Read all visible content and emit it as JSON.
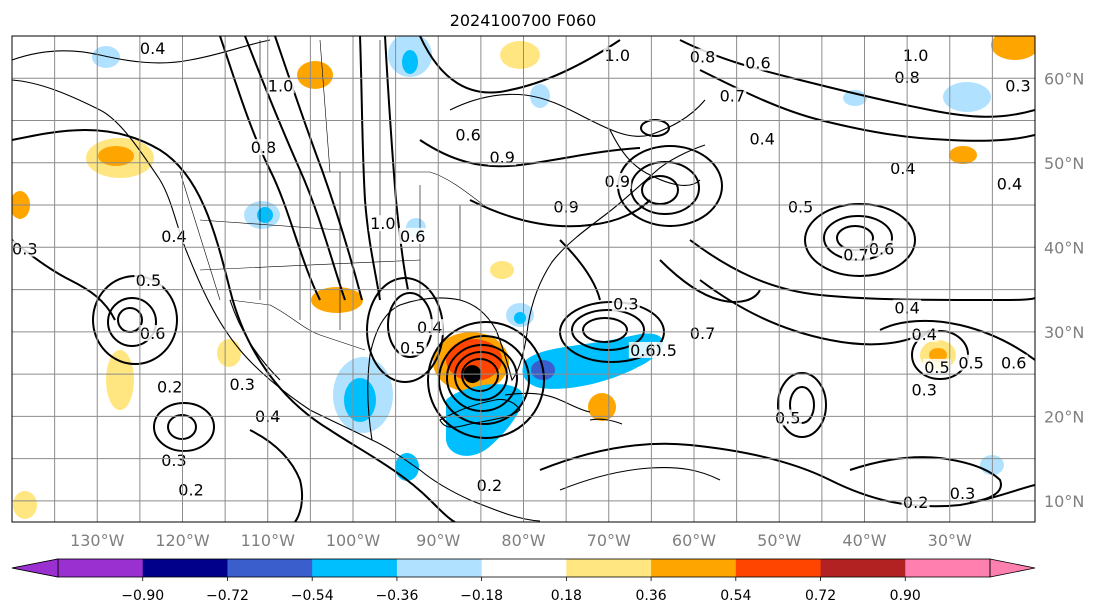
{
  "title": "2024100700 F060",
  "chart_data": {
    "type": "contour-map",
    "title": "2024100700 F060",
    "lon_range": [
      -140,
      -20
    ],
    "lat_range": [
      7.5,
      65
    ],
    "lon_ticks": [
      {
        "lon": -130,
        "label": "130°W"
      },
      {
        "lon": -120,
        "label": "120°W"
      },
      {
        "lon": -110,
        "label": "110°W"
      },
      {
        "lon": -100,
        "label": "100°W"
      },
      {
        "lon": -90,
        "label": "90°W"
      },
      {
        "lon": -80,
        "label": "80°W"
      },
      {
        "lon": -70,
        "label": "70°W"
      },
      {
        "lon": -60,
        "label": "60°W"
      },
      {
        "lon": -50,
        "label": "50°W"
      },
      {
        "lon": -40,
        "label": "40°W"
      },
      {
        "lon": -30,
        "label": "30°W"
      }
    ],
    "lat_ticks": [
      {
        "lat": 10,
        "label": "10°N"
      },
      {
        "lat": 20,
        "label": "20°N"
      },
      {
        "lat": 30,
        "label": "30°N"
      },
      {
        "lat": 40,
        "label": "40°N"
      },
      {
        "lat": 50,
        "label": "50°N"
      },
      {
        "lat": 60,
        "label": "60°N"
      }
    ],
    "grid": true,
    "storm_center": {
      "lon": -86,
      "lat": 25
    },
    "colorbar": {
      "levels": [
        -0.9,
        -0.72,
        -0.54,
        -0.36,
        -0.18,
        0.18,
        0.36,
        0.54,
        0.72,
        0.9
      ],
      "tick_labels": [
        "−0.90",
        "−0.72",
        "−0.54",
        "−0.36",
        "−0.18",
        "0.18",
        "0.36",
        "0.54",
        "0.72",
        "0.90"
      ],
      "colors": [
        "#9b30d0",
        "#00008b",
        "#3a5fcd",
        "#00bfff",
        "#b0e2ff",
        "#ffffff",
        "#ffe680",
        "#ffa500",
        "#ff4500",
        "#b22222",
        "#ff7faf"
      ],
      "extend": "both"
    },
    "contour_labels": [
      {
        "text": "0.4",
        "lon": -123.5,
        "lat": 63.2
      },
      {
        "text": "0.8",
        "lon": -110.5,
        "lat": 51.5
      },
      {
        "text": "1.0",
        "lon": -108.5,
        "lat": 58.8
      },
      {
        "text": "0.9",
        "lon": -82.5,
        "lat": 50.3
      },
      {
        "text": "0.6",
        "lon": -86.5,
        "lat": 53
      },
      {
        "text": "1.0",
        "lon": -69,
        "lat": 62.4
      },
      {
        "text": "0.8",
        "lon": -59,
        "lat": 62.2
      },
      {
        "text": "0.7",
        "lon": -55.5,
        "lat": 57.6
      },
      {
        "text": "0.6",
        "lon": -52.5,
        "lat": 61.5
      },
      {
        "text": "0.4",
        "lon": -52,
        "lat": 52.5
      },
      {
        "text": "1.0",
        "lon": -34,
        "lat": 62.4
      },
      {
        "text": "0.8",
        "lon": -35,
        "lat": 59.8
      },
      {
        "text": "0.3",
        "lon": -22,
        "lat": 58.8
      },
      {
        "text": "0.5",
        "lon": -47.5,
        "lat": 44.5
      },
      {
        "text": "0.7",
        "lon": -41,
        "lat": 38.8
      },
      {
        "text": "0.6",
        "lon": -38,
        "lat": 39.5
      },
      {
        "text": "0.4",
        "lon": -35.5,
        "lat": 49
      },
      {
        "text": "0.4",
        "lon": -23,
        "lat": 47.2
      },
      {
        "text": "0.4",
        "lon": -35,
        "lat": 32.5
      },
      {
        "text": "0.4",
        "lon": -33,
        "lat": 29.4
      },
      {
        "text": "0.3",
        "lon": -68,
        "lat": 33
      },
      {
        "text": "0.5",
        "lon": -31.5,
        "lat": 25.5
      },
      {
        "text": "0.3",
        "lon": -33,
        "lat": 22.8
      },
      {
        "text": "0.5",
        "lon": -27.5,
        "lat": 26
      },
      {
        "text": "0.6",
        "lon": -22.5,
        "lat": 26
      },
      {
        "text": "0.2",
        "lon": -34,
        "lat": 9.5
      },
      {
        "text": "0.3",
        "lon": -28.5,
        "lat": 10.6
      },
      {
        "text": "0.5",
        "lon": -49,
        "lat": 19.5
      },
      {
        "text": "0.5",
        "lon": -63.5,
        "lat": 27.5
      },
      {
        "text": "0.6",
        "lon": -66,
        "lat": 27.5
      },
      {
        "text": "0.7",
        "lon": -59,
        "lat": 29.5
      },
      {
        "text": "0.3",
        "lon": -138.5,
        "lat": 39.5
      },
      {
        "text": "0.5",
        "lon": -124,
        "lat": 35.8
      },
      {
        "text": "0.4",
        "lon": -121,
        "lat": 41
      },
      {
        "text": "0.6",
        "lon": -123.5,
        "lat": 29.5
      },
      {
        "text": "0.2",
        "lon": -121.5,
        "lat": 23.2
      },
      {
        "text": "0.3",
        "lon": -113,
        "lat": 23.5
      },
      {
        "text": "0.4",
        "lon": -110,
        "lat": 19.7
      },
      {
        "text": "0.3",
        "lon": -121,
        "lat": 14.5
      },
      {
        "text": "0.2",
        "lon": -119,
        "lat": 11
      },
      {
        "text": "0.5",
        "lon": -93,
        "lat": 27.8
      },
      {
        "text": "0.4",
        "lon": -91,
        "lat": 30.2
      },
      {
        "text": "0.2",
        "lon": -84,
        "lat": 11.5
      },
      {
        "text": "0.9",
        "lon": -75,
        "lat": 44.5
      },
      {
        "text": "0.9",
        "lon": -69,
        "lat": 47.5
      },
      {
        "text": "1.0",
        "lon": -96.5,
        "lat": 42.5
      },
      {
        "text": "0.6",
        "lon": -93,
        "lat": 41
      }
    ]
  }
}
